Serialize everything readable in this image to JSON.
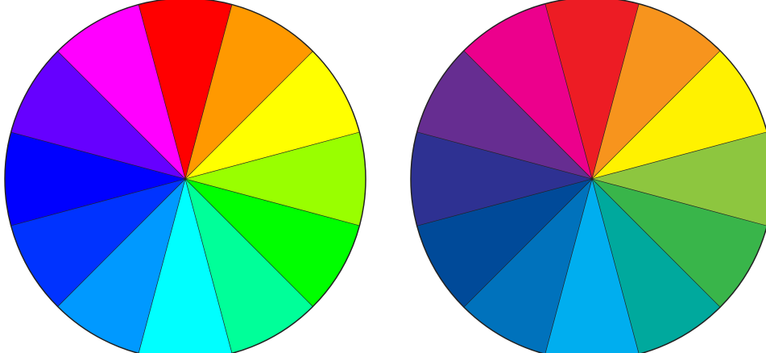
{
  "wheels": [
    {
      "id": "rgb",
      "segments": [
        "#ff0000",
        "#ff9900",
        "#ffff00",
        "#99ff00",
        "#00ff00",
        "#00ff99",
        "#00ffff",
        "#0099ff",
        "#0033ff",
        "#0000ff",
        "#6600ff",
        "#ff00ff"
      ]
    },
    {
      "id": "print",
      "segments": [
        "#ed1c24",
        "#f7941d",
        "#fff200",
        "#8dc63f",
        "#39b54a",
        "#00a99d",
        "#00aeef",
        "#0072bc",
        "#004a99",
        "#2e3192",
        "#662d91",
        "#ec008c"
      ]
    }
  ],
  "outline_color": "#222222"
}
